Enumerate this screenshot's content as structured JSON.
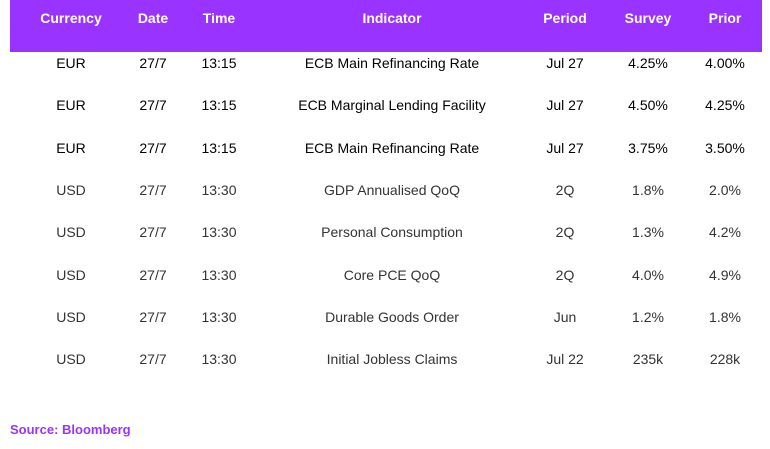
{
  "table": {
    "headers": [
      "Currency",
      "Date",
      "Time",
      "Indicator",
      "Period",
      "Survey",
      "Prior"
    ],
    "rows": [
      {
        "currency": "EUR",
        "date": "27/7",
        "time": "13:15",
        "indicator": "ECB Main Refinancing Rate",
        "period": "Jul 27",
        "survey": "4.25%",
        "prior": "4.00%"
      },
      {
        "currency": "EUR",
        "date": "27/7",
        "time": "13:15",
        "indicator": "ECB Marginal Lending Facility",
        "period": "Jul 27",
        "survey": "4.50%",
        "prior": "4.25%"
      },
      {
        "currency": "EUR",
        "date": "27/7",
        "time": "13:15",
        "indicator": "ECB Main Refinancing Rate",
        "period": "Jul 27",
        "survey": "3.75%",
        "prior": "3.50%"
      },
      {
        "currency": "USD",
        "date": "27/7",
        "time": "13:30",
        "indicator": "GDP Annualised QoQ",
        "period": "2Q",
        "survey": "1.8%",
        "prior": "2.0%"
      },
      {
        "currency": "USD",
        "date": "27/7",
        "time": "13:30",
        "indicator": "Personal Consumption",
        "period": "2Q",
        "survey": "1.3%",
        "prior": "4.2%"
      },
      {
        "currency": "USD",
        "date": "27/7",
        "time": "13:30",
        "indicator": "Core PCE QoQ",
        "period": "2Q",
        "survey": "4.0%",
        "prior": "4.9%"
      },
      {
        "currency": "USD",
        "date": "27/7",
        "time": "13:30",
        "indicator": "Durable Goods Order",
        "period": "Jun",
        "survey": "1.2%",
        "prior": "1.8%"
      },
      {
        "currency": "USD",
        "date": "27/7",
        "time": "13:30",
        "indicator": "Initial Jobless Claims",
        "period": "Jul 22",
        "survey": "235k",
        "prior": "228k"
      }
    ]
  },
  "source": "Source: Bloomberg",
  "colors": {
    "header_bg": "#9933ff",
    "header_text": "#ffffff",
    "source_text": "#9933ff"
  }
}
